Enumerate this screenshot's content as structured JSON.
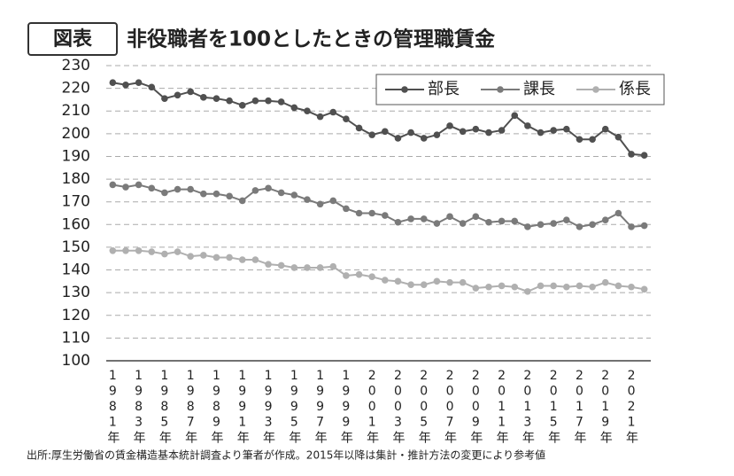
{
  "badge": "図表",
  "source": "出所:厚生労働省の賃金構造基本統計調査より筆者が作成。2015年以降は集計・推計方法の変更により参考値",
  "chart_data": {
    "type": "line",
    "title": "非役職者を100としたときの管理職賃金",
    "categories": [
      "1981年",
      null,
      "1983年",
      null,
      "1985年",
      null,
      "1987年",
      null,
      "1989年",
      null,
      "1991年",
      null,
      "1993年",
      null,
      "1995年",
      null,
      "1997年",
      null,
      "1999年",
      null,
      "2001年",
      null,
      "2003年",
      null,
      "2005年",
      null,
      "2007年",
      null,
      "2009年",
      null,
      "2011年",
      null,
      "2013年",
      null,
      "2015年",
      null,
      "2017年",
      null,
      "2019年",
      null,
      "2021年",
      null
    ],
    "series": [
      {
        "name": "部長",
        "color": "#505050",
        "values": [
          222.5,
          221.5,
          222.5,
          220.5,
          215.5,
          217,
          218.5,
          216,
          215.5,
          214.5,
          212.5,
          214.5,
          214.5,
          214,
          211.5,
          210,
          207.5,
          209.5,
          206.5,
          202.5,
          199.5,
          201,
          198,
          200.5,
          198,
          199.5,
          203.5,
          201,
          202,
          200.5,
          201.5,
          208,
          203.5,
          200.5,
          201.5,
          202,
          197.5,
          197.5,
          202,
          198.5,
          191,
          190.5
        ]
      },
      {
        "name": "課長",
        "color": "#7a7a7a",
        "values": [
          177.5,
          176.5,
          177.5,
          176,
          174,
          175.5,
          175.5,
          173.5,
          173.5,
          172.5,
          170.5,
          175,
          176,
          174,
          173,
          171,
          169,
          170.5,
          167,
          165,
          165,
          164,
          161,
          162.5,
          162.5,
          160.5,
          163.5,
          160.5,
          163.5,
          161,
          161.5,
          161.5,
          159,
          160,
          160.5,
          162,
          159,
          160,
          162,
          165,
          159,
          159.5
        ]
      },
      {
        "name": "係長",
        "color": "#b0b0b0",
        "values": [
          148.5,
          148.5,
          148.5,
          148,
          147,
          148,
          146,
          146.5,
          145.5,
          145.5,
          144.5,
          144.5,
          142.5,
          142,
          141,
          141,
          141,
          141.5,
          137.5,
          138,
          137,
          135.5,
          135,
          133.5,
          133.5,
          135,
          134.5,
          134.5,
          132,
          132.5,
          133,
          132.5,
          130.5,
          133,
          133,
          132.5,
          133,
          132.5,
          134.5,
          133,
          132.5,
          131.5
        ]
      }
    ],
    "ylim": [
      100,
      230
    ],
    "yticks": [
      100,
      110,
      120,
      130,
      140,
      150,
      160,
      170,
      180,
      190,
      200,
      210,
      220,
      230
    ],
    "grid": true,
    "legend": "top-right"
  }
}
